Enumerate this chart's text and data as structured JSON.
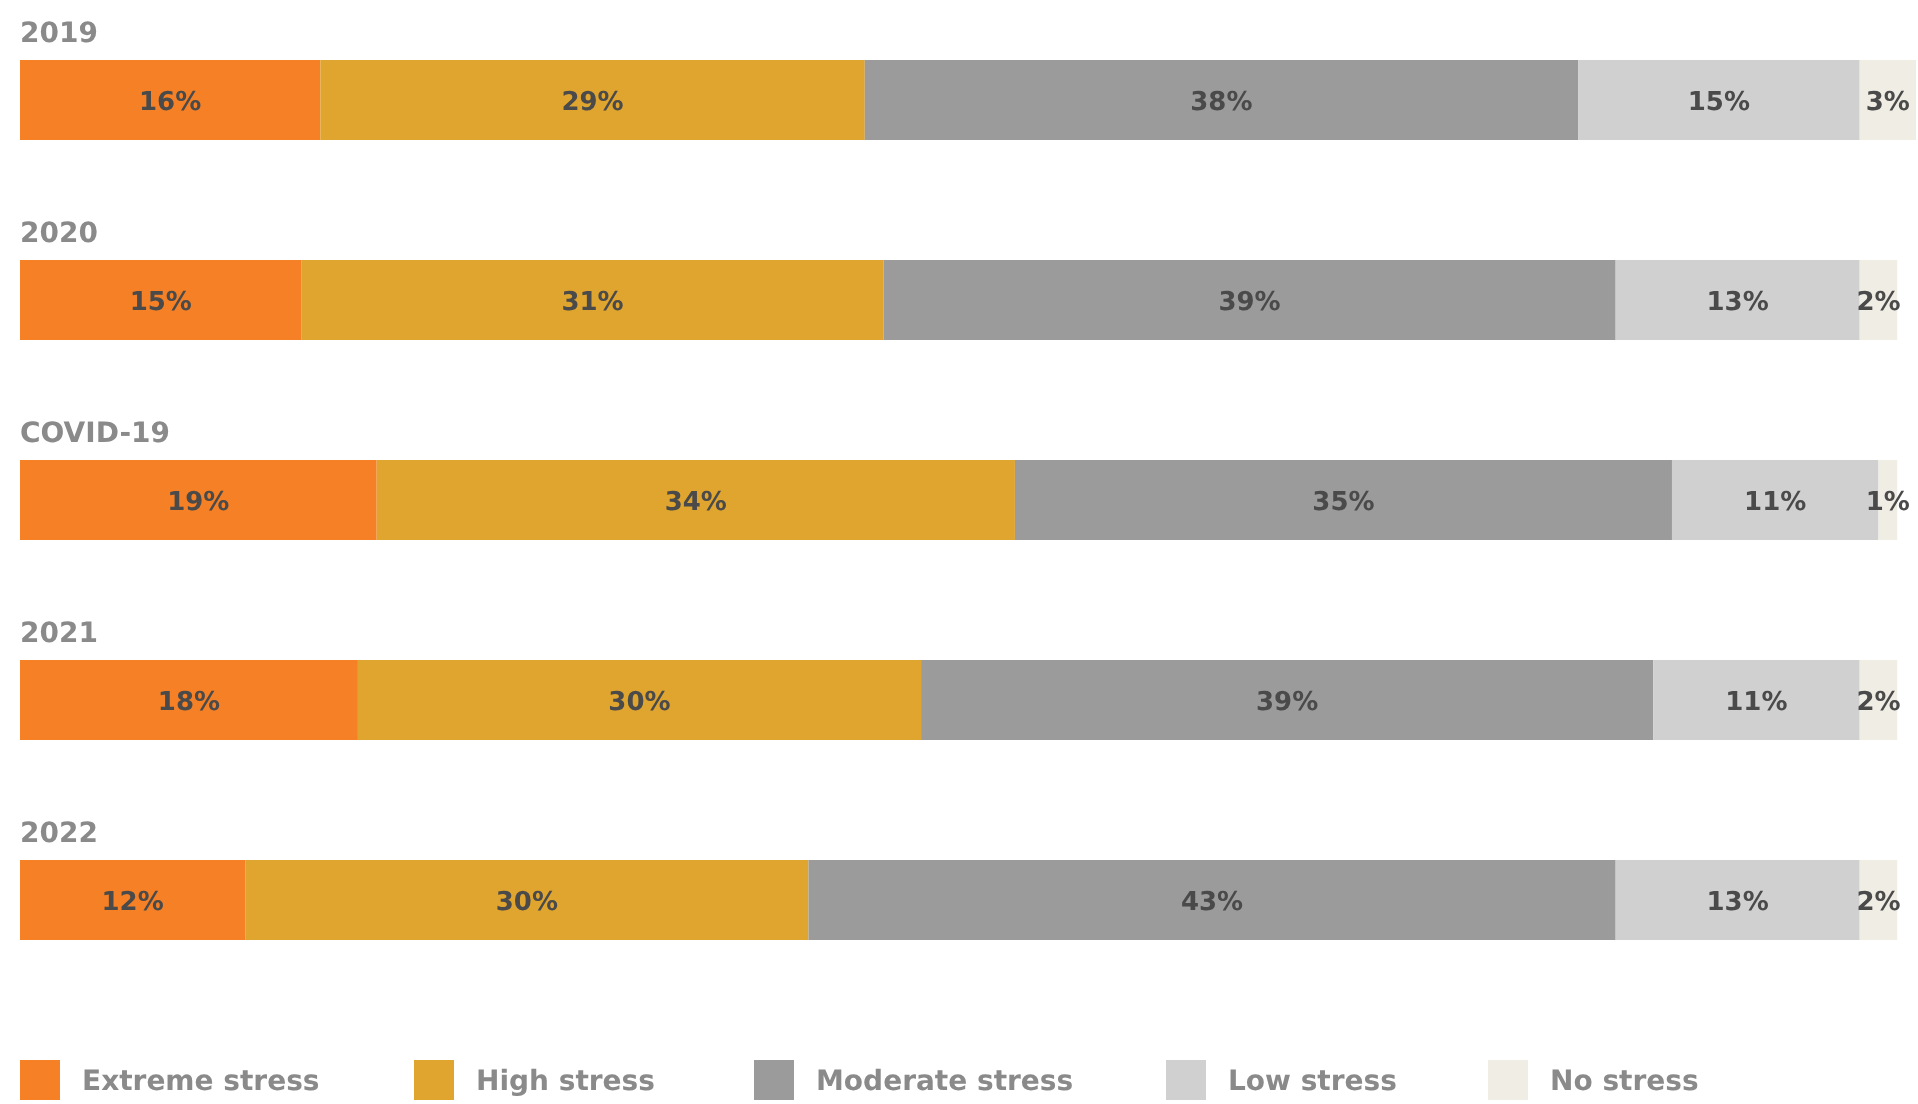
{
  "chart_data": {
    "type": "bar",
    "orientation": "horizontal",
    "stacked": true,
    "categories": [
      "2019",
      "2020",
      "COVID-19",
      "2021",
      "2022"
    ],
    "legend": "bottom left",
    "series": [
      {
        "name": "Extreme stress",
        "color": "#f58025",
        "values": [
          16,
          15,
          19,
          18,
          12
        ],
        "value_labels": [
          "16%",
          "15%",
          "19%",
          "18%",
          "12%"
        ]
      },
      {
        "name": "High stress",
        "color": "#e0a52e",
        "values": [
          29,
          31,
          34,
          30,
          30
        ],
        "value_labels": [
          "29%",
          "31%",
          "34%",
          "30%",
          "30%"
        ]
      },
      {
        "name": "Moderate stress",
        "color": "#9b9b9b",
        "values": [
          38,
          39,
          35,
          39,
          43
        ],
        "value_labels": [
          "38%",
          "39%",
          "35%",
          "39%",
          "43%"
        ]
      },
      {
        "name": "Low stress",
        "color": "#d0d0d0",
        "values": [
          15,
          13,
          11,
          11,
          13
        ],
        "value_labels": [
          "15%",
          "13%",
          "11%",
          "11%",
          "13%"
        ]
      },
      {
        "name": "No stress",
        "color": "#f0ede4",
        "values": [
          3,
          2,
          1,
          2,
          2
        ],
        "value_labels": [
          "3%",
          "2%",
          "1%",
          "2%",
          "2%"
        ]
      }
    ]
  }
}
